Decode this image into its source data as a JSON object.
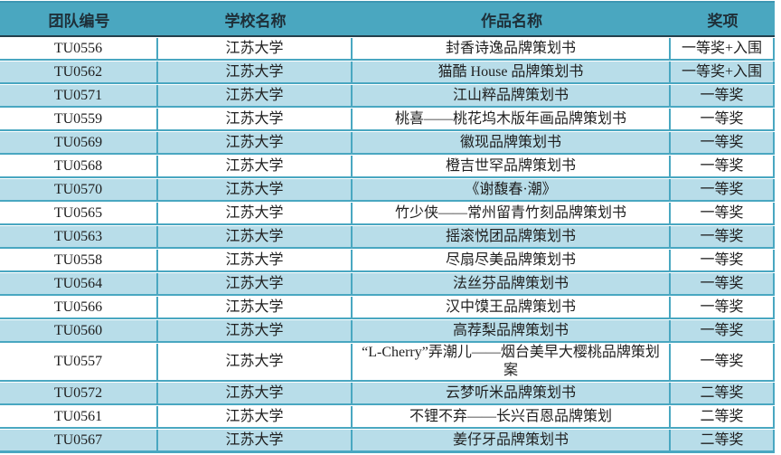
{
  "colors": {
    "header_bg": "#4AA7C0",
    "header_text": "#1E2F38",
    "row_alt_bg": "#B8DDE9",
    "row_bg": "#FFFFFF",
    "grid": "#49A7C1",
    "header_border_bottom": "#24404C",
    "body_text": "#1F1F1F"
  },
  "table": {
    "columns": [
      {
        "key": "team_id",
        "label": "团队编号"
      },
      {
        "key": "school",
        "label": "学校名称"
      },
      {
        "key": "work",
        "label": "作品名称"
      },
      {
        "key": "award",
        "label": "奖项"
      }
    ],
    "rows": [
      {
        "team_id": "TU0556",
        "school": "江苏大学",
        "work": "封香诗逸品牌策划书",
        "award": "一等奖+入围",
        "shaded": false
      },
      {
        "team_id": "TU0562",
        "school": "江苏大学",
        "work": "猫酷 House 品牌策划书",
        "award": "一等奖+入围",
        "shaded": true
      },
      {
        "team_id": "TU0571",
        "school": "江苏大学",
        "work": "江山粹品牌策划书",
        "award": "一等奖",
        "shaded": true
      },
      {
        "team_id": "TU0559",
        "school": "江苏大学",
        "work": "桃喜——桃花坞木版年画品牌策划书",
        "award": "一等奖",
        "shaded": false
      },
      {
        "team_id": "TU0569",
        "school": "江苏大学",
        "work": "徽现品牌策划书",
        "award": "一等奖",
        "shaded": true
      },
      {
        "team_id": "TU0568",
        "school": "江苏大学",
        "work": "橙吉世罕品牌策划书",
        "award": "一等奖",
        "shaded": false
      },
      {
        "team_id": "TU0570",
        "school": "江苏大学",
        "work": "《谢馥春·潮》",
        "award": "一等奖",
        "shaded": true
      },
      {
        "team_id": "TU0565",
        "school": "江苏大学",
        "work": "竹少侠——常州留青竹刻品牌策划书",
        "award": "一等奖",
        "shaded": false
      },
      {
        "team_id": "TU0563",
        "school": "江苏大学",
        "work": "摇滚悦团品牌策划书",
        "award": "一等奖",
        "shaded": true
      },
      {
        "team_id": "TU0558",
        "school": "江苏大学",
        "work": "尽扇尽美品牌策划书",
        "award": "一等奖",
        "shaded": false
      },
      {
        "team_id": "TU0564",
        "school": "江苏大学",
        "work": "法丝芬品牌策划书",
        "award": "一等奖",
        "shaded": true
      },
      {
        "team_id": "TU0566",
        "school": "江苏大学",
        "work": "汉中馍王品牌策划书",
        "award": "一等奖",
        "shaded": false
      },
      {
        "team_id": "TU0560",
        "school": "江苏大学",
        "work": "高荐梨品牌策划书",
        "award": "一等奖",
        "shaded": true
      },
      {
        "team_id": "TU0557",
        "school": "江苏大学",
        "work": "“L-Cherry”弄潮儿——烟台美早大樱桃品牌策划案",
        "award": "一等奖",
        "shaded": false
      },
      {
        "team_id": "TU0572",
        "school": "江苏大学",
        "work": "云梦听米品牌策划书",
        "award": "二等奖",
        "shaded": true
      },
      {
        "team_id": "TU0561",
        "school": "江苏大学",
        "work": "不锂不弃——长兴百恩品牌策划",
        "award": "二等奖",
        "shaded": false
      },
      {
        "team_id": "TU0567",
        "school": "江苏大学",
        "work": "姜仔牙品牌策划书",
        "award": "二等奖",
        "shaded": true
      }
    ]
  }
}
